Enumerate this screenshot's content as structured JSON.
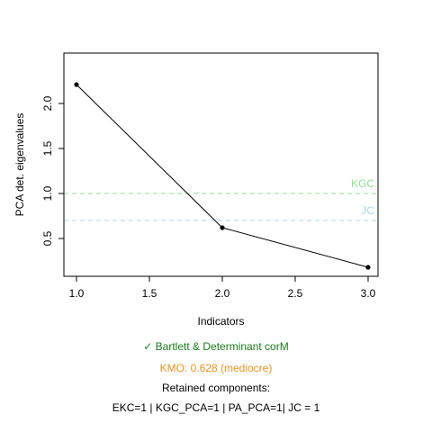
{
  "chart_data": {
    "type": "line",
    "x": [
      1,
      2,
      3
    ],
    "y": [
      2.21,
      0.62,
      0.18
    ],
    "xlabel": "Indicators",
    "ylabel": "PCA det. eigenvalues",
    "xlim": [
      1,
      3
    ],
    "ylim": [
      0.18,
      2.21
    ],
    "xticks": [
      "1.0",
      "1.5",
      "2.0",
      "2.5",
      "3.0"
    ],
    "yticks": [
      "0.5",
      "1.0",
      "1.5",
      "2.0"
    ],
    "grid": false,
    "reference_lines": [
      {
        "label": "KGC",
        "y": 1.0,
        "color": "#90e090"
      },
      {
        "label": "JC",
        "y": 0.7,
        "color": "#add8e6"
      }
    ]
  },
  "captions": {
    "bartlett": "✓ Bartlett & Determinant corM",
    "kmo": "KMO: 0.628 (mediocre)",
    "retained": "Retained components:",
    "summary": "EKC=1 | KGC_PCA=1 | PA_PCA=1| JC = 1"
  }
}
